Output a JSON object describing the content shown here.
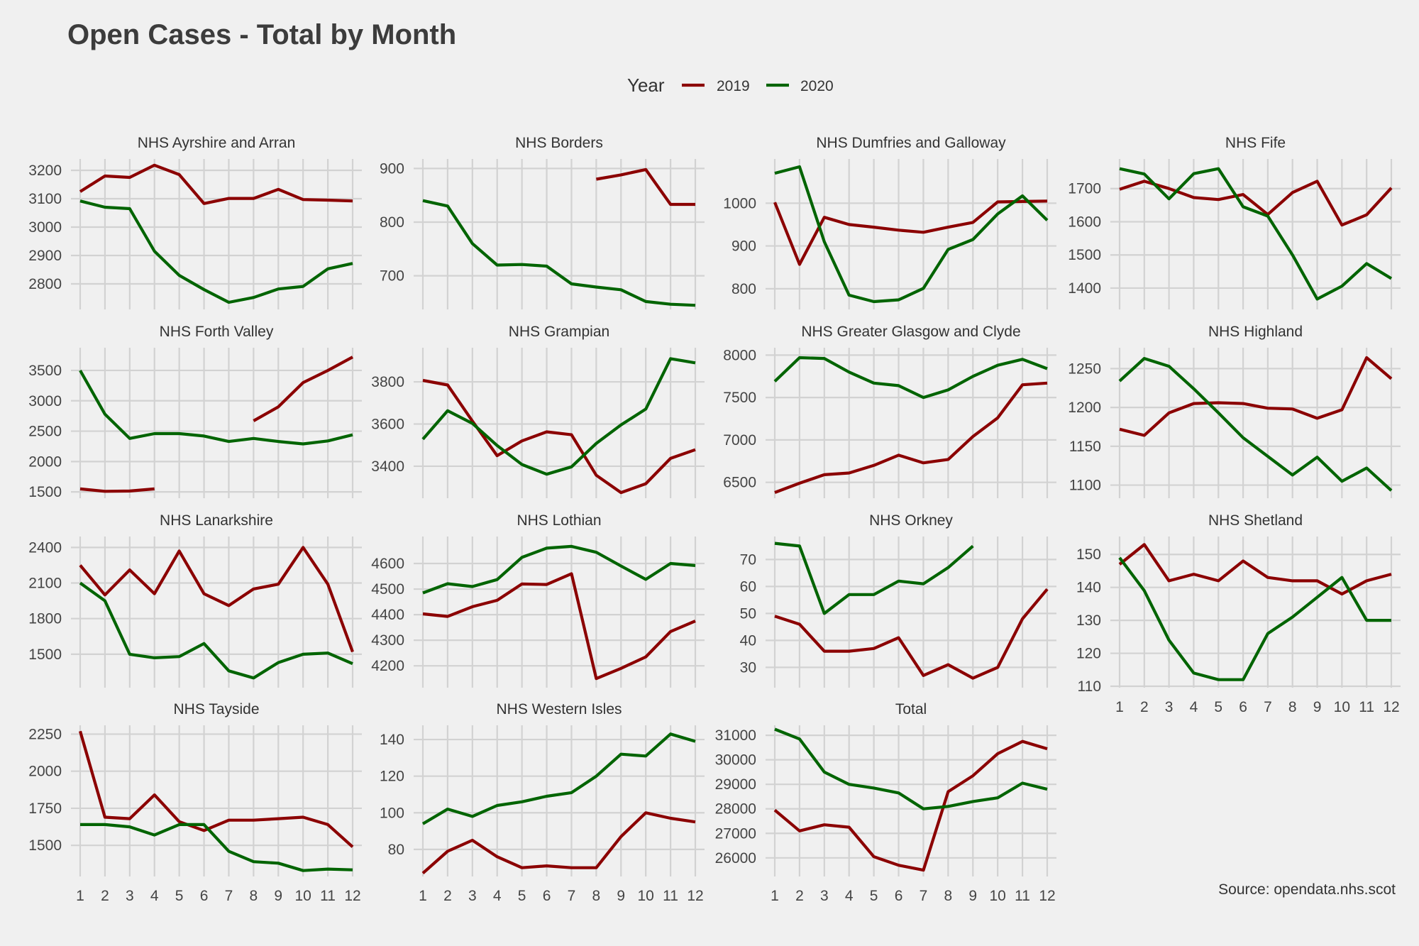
{
  "title": "Open Cases - Total by Month",
  "caption": "Source: opendata.nhs.scot",
  "legend": {
    "title": "Year",
    "position": "top-center",
    "entries": [
      {
        "label": "2019",
        "color": "#8b0000"
      },
      {
        "label": "2020",
        "color": "#006400"
      }
    ]
  },
  "chart_data": {
    "type": "line",
    "layout": "facet_wrap",
    "x": [
      1,
      2,
      3,
      4,
      5,
      6,
      7,
      8,
      9,
      10,
      11,
      12
    ],
    "grid": true,
    "panels": [
      {
        "name": "NHS Ayrshire and Arran",
        "yticks": [
          2800,
          2900,
          3000,
          3100,
          3200
        ],
        "ylim": [
          2715,
          3235
        ],
        "series": [
          {
            "name": "2019",
            "values": [
              3125,
              3180,
              3175,
              3218,
              3185,
              3083,
              3101,
              3101,
              3133,
              3097,
              3095,
              3092
            ]
          },
          {
            "name": "2020",
            "values": [
              3092,
              3070,
              3065,
              2915,
              2830,
              2780,
              2735,
              2752,
              2782,
              2791,
              2853,
              2872
            ]
          }
        ]
      },
      {
        "name": "NHS Borders",
        "yticks": [
          700,
          800,
          900
        ],
        "ylim": [
          640,
          915
        ],
        "series": [
          {
            "name": "2019",
            "values": [
              null,
              null,
              null,
              null,
              null,
              null,
              null,
              880,
              888,
              898,
              833,
              833
            ]
          },
          {
            "name": "2020",
            "values": [
              840,
              830,
              760,
              720,
              721,
              718,
              685,
              679,
              674,
              652,
              647,
              645
            ]
          }
        ]
      },
      {
        "name": "NHS Dumfries and Galloway",
        "yticks": [
          800,
          900,
          1000
        ],
        "ylim": [
          755,
          1100
        ],
        "series": [
          {
            "name": "2019",
            "values": [
              1002,
              857,
              967,
              950,
              944,
              937,
              932,
              944,
              955,
              1003,
              1004,
              1005
            ]
          },
          {
            "name": "2020",
            "values": [
              1070,
              1085,
              910,
              785,
              770,
              774,
              801,
              892,
              915,
              975,
              1017,
              960
            ]
          }
        ]
      },
      {
        "name": "NHS Fife",
        "yticks": [
          1400,
          1500,
          1600,
          1700
        ],
        "ylim": [
          1340,
          1785
        ],
        "series": [
          {
            "name": "2019",
            "values": [
              1698,
              1722,
              1700,
              1673,
              1667,
              1682,
              1622,
              1688,
              1722,
              1590,
              1621,
              1702
            ]
          },
          {
            "name": "2020",
            "values": [
              1760,
              1744,
              1669,
              1745,
              1760,
              1645,
              1617,
              1500,
              1367,
              1406,
              1474,
              1429
            ]
          }
        ]
      },
      {
        "name": "NHS Forth Valley",
        "yticks": [
          1500,
          2000,
          2500,
          3000,
          3500
        ],
        "ylim": [
          1420,
          3850
        ],
        "series": [
          {
            "name": "2019",
            "values": [
              1550,
              1510,
              1515,
              1550,
              null,
              null,
              null,
              2670,
              2900,
              3300,
              3500,
              3720
            ]
          },
          {
            "name": "2020",
            "values": [
              3500,
              2780,
              2380,
              2460,
              2460,
              2420,
              2330,
              2380,
              2330,
              2290,
              2340,
              2440
            ]
          }
        ]
      },
      {
        "name": "NHS Grampian",
        "yticks": [
          3400,
          3600,
          3800
        ],
        "ylim": [
          3255,
          3955
        ],
        "series": [
          {
            "name": "2019",
            "values": [
              3807,
              3785,
              3614,
              3450,
              3520,
              3563,
              3549,
              3357,
              3275,
              3317,
              3437,
              3478
            ]
          },
          {
            "name": "2020",
            "values": [
              3528,
              3663,
              3603,
              3498,
              3408,
              3362,
              3397,
              3508,
              3596,
              3671,
              3910,
              3890
            ]
          }
        ]
      },
      {
        "name": "NHS Greater Glasgow and Clyde",
        "yticks": [
          6500,
          7000,
          7500,
          8000
        ],
        "ylim": [
          6330,
          8070
        ],
        "series": [
          {
            "name": "2019",
            "values": [
              6380,
              6490,
              6590,
              6610,
              6700,
              6820,
              6730,
              6770,
              7040,
              7260,
              7650,
              7670
            ]
          },
          {
            "name": "2020",
            "values": [
              7690,
              7970,
              7960,
              7800,
              7670,
              7640,
              7500,
              7590,
              7750,
              7880,
              7950,
              7840
            ]
          }
        ]
      },
      {
        "name": "NHS Highland",
        "yticks": [
          1100,
          1150,
          1200,
          1250
        ],
        "ylim": [
          1085,
          1275
        ],
        "series": [
          {
            "name": "2019",
            "values": [
              1172,
              1164,
              1193,
              1205,
              1206,
              1205,
              1199,
              1198,
              1186,
              1197,
              1264,
              1237
            ]
          },
          {
            "name": "2020",
            "values": [
              1234,
              1263,
              1253,
              1224,
              1193,
              1161,
              1137,
              1113,
              1136,
              1105,
              1122,
              1093
            ]
          }
        ]
      },
      {
        "name": "NHS Lanarkshire",
        "yticks": [
          1500,
          1800,
          2100,
          2400
        ],
        "ylim": [
          1230,
          2480
        ],
        "series": [
          {
            "name": "2019",
            "values": [
              2250,
              2000,
              2210,
              2010,
              2370,
              2010,
              1910,
              2050,
              2090,
              2400,
              2090,
              1520
            ]
          },
          {
            "name": "2020",
            "values": [
              2100,
              1950,
              1500,
              1470,
              1480,
              1590,
              1360,
              1300,
              1430,
              1500,
              1510,
              1420
            ]
          }
        ]
      },
      {
        "name": "NHS Lothian",
        "yticks": [
          4200,
          4300,
          4400,
          4500,
          4600
        ],
        "ylim": [
          4120,
          4700
        ],
        "series": [
          {
            "name": "2019",
            "values": [
              4403,
              4393,
              4431,
              4456,
              4520,
              4518,
              4560,
              4150,
              4190,
              4235,
              4334,
              4375
            ]
          },
          {
            "name": "2020",
            "values": [
              4485,
              4521,
              4510,
              4537,
              4624,
              4660,
              4667,
              4644,
              4590,
              4538,
              4600,
              4592
            ]
          }
        ]
      },
      {
        "name": "NHS Orkney",
        "yticks": [
          30,
          40,
          50,
          60,
          70
        ],
        "ylim": [
          23,
          78
        ],
        "series": [
          {
            "name": "2019",
            "values": [
              49,
              46,
              36,
              36,
              37,
              41,
              27,
              31,
              26,
              30,
              48,
              59
            ]
          },
          {
            "name": "2020",
            "values": [
              76,
              75,
              50,
              57,
              57,
              62,
              61,
              67,
              75,
              null,
              null,
              null
            ]
          }
        ]
      },
      {
        "name": "NHS Shetland",
        "yticks": [
          110,
          120,
          130,
          140,
          150
        ],
        "ylim": [
          110,
          155
        ],
        "series": [
          {
            "name": "2019",
            "values": [
              147,
              153,
              142,
              144,
              142,
              148,
              143,
              142,
              142,
              138,
              142,
              144
            ]
          },
          {
            "name": "2020",
            "values": [
              149,
              139,
              124,
              114,
              112,
              112,
              126,
              131,
              137,
              143,
              130,
              130
            ]
          }
        ]
      },
      {
        "name": "NHS Tayside",
        "yticks": [
          1500,
          1750,
          2000,
          2250
        ],
        "ylim": [
          1300,
          2300
        ],
        "series": [
          {
            "name": "2019",
            "values": [
              2270,
              1690,
              1680,
              1840,
              1660,
              1600,
              1670,
              1670,
              1680,
              1690,
              1640,
              1490
            ]
          },
          {
            "name": "2020",
            "values": [
              1640,
              1640,
              1625,
              1570,
              1640,
              1640,
              1460,
              1390,
              1380,
              1330,
              1340,
              1335
            ]
          }
        ]
      },
      {
        "name": "NHS Western Isles",
        "yticks": [
          80,
          100,
          120,
          140
        ],
        "ylim": [
          66,
          147
        ],
        "series": [
          {
            "name": "2019",
            "values": [
              67,
              79,
              85,
              76,
              70,
              71,
              70,
              70,
              87,
              100,
              97,
              95
            ]
          },
          {
            "name": "2020",
            "values": [
              94,
              102,
              98,
              104,
              106,
              109,
              111,
              120,
              132,
              131,
              143,
              139
            ]
          }
        ]
      },
      {
        "name": "Total",
        "yticks": [
          26000,
          27000,
          28000,
          29000,
          30000,
          31000
        ],
        "ylim": [
          25300,
          31350
        ],
        "series": [
          {
            "name": "2019",
            "values": [
              27950,
              27100,
              27350,
              27250,
              26050,
              25700,
              25500,
              28700,
              29350,
              30250,
              30750,
              30450
            ]
          },
          {
            "name": "2020",
            "values": [
              31250,
              30850,
              29500,
              29000,
              28850,
              28650,
              28000,
              28100,
              28300,
              28450,
              29050,
              28800
            ]
          }
        ]
      }
    ]
  }
}
